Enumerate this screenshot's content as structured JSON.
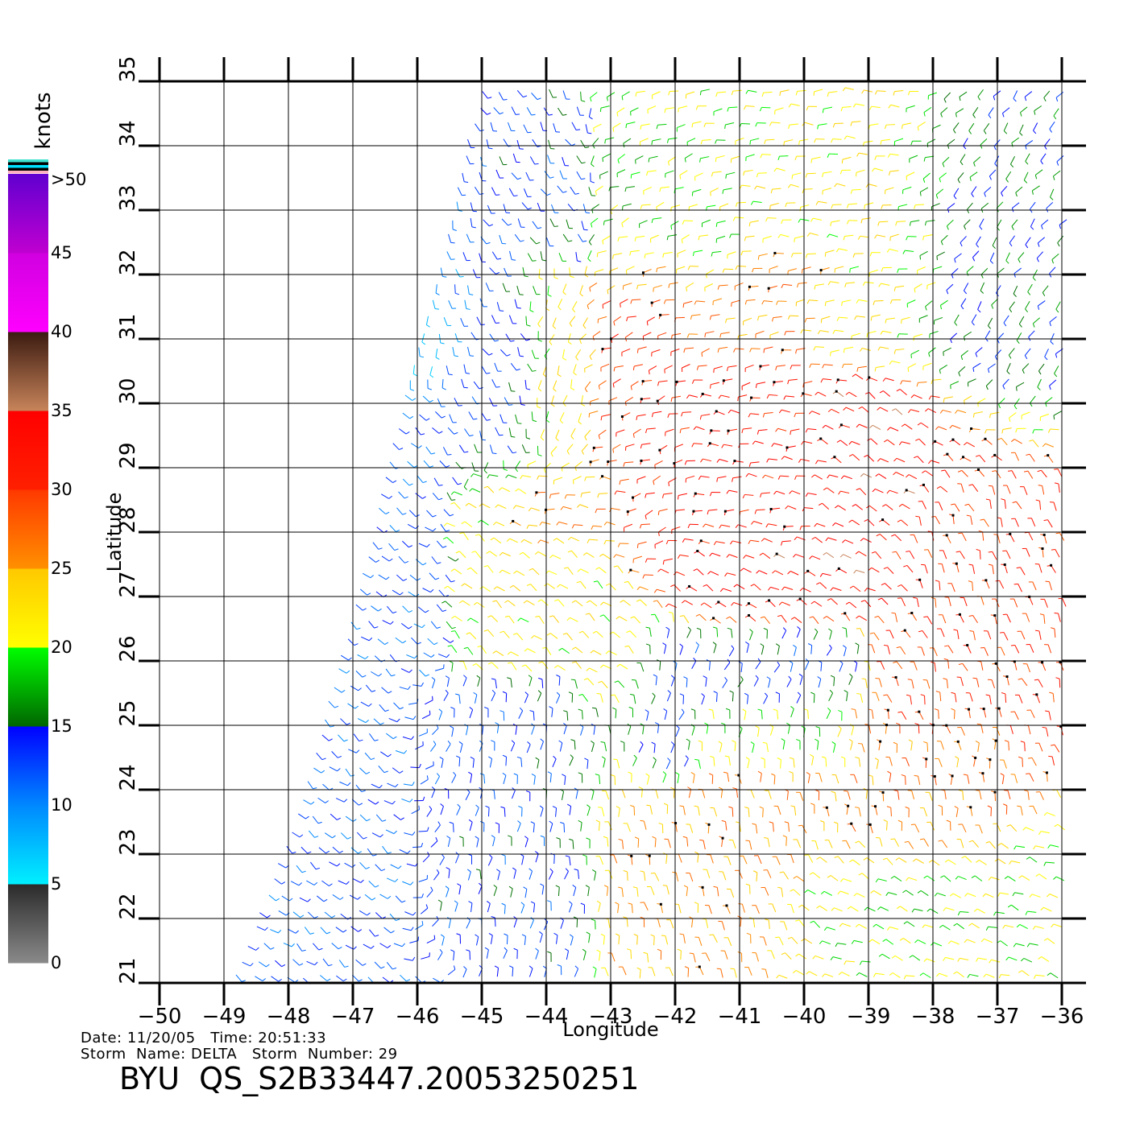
{
  "chart_data": {
    "type": "wind_barb_map",
    "xlabel": "Longitude",
    "ylabel": "Latitude",
    "xlim": [
      -50,
      -36
    ],
    "ylim": [
      21,
      35
    ],
    "x_ticks": [
      -50,
      -49,
      -48,
      -47,
      -46,
      -45,
      -44,
      -43,
      -42,
      -41,
      -40,
      -39,
      -38,
      -37,
      -36
    ],
    "y_ticks": [
      21,
      22,
      23,
      24,
      25,
      26,
      27,
      28,
      29,
      30,
      31,
      32,
      33,
      34,
      35
    ],
    "x_tick_labels": [
      "−50",
      "−49",
      "−48",
      "−47",
      "−46",
      "−45",
      "−44",
      "−43",
      "−42",
      "−41",
      "−40",
      "−39",
      "−38",
      "−37",
      "−36"
    ],
    "y_tick_labels": [
      "21",
      "22",
      "23",
      "24",
      "25",
      "26",
      "27",
      "28",
      "29",
      "30",
      "31",
      "32",
      "33",
      "34",
      "35"
    ],
    "grid": true,
    "swath_edge": [
      [
        -48.9,
        21.0
      ],
      [
        -47.8,
        24.0
      ],
      [
        -47.0,
        27.0
      ],
      [
        -46.4,
        29.5
      ],
      [
        -45.6,
        32.5
      ],
      [
        -45.3,
        34.0
      ],
      [
        -45.0,
        35.0
      ]
    ],
    "colorbar": {
      "title": "knots",
      "position": "left",
      "tick_labels": [
        "0",
        "5",
        "10",
        "15",
        "20",
        "25",
        "30",
        "35",
        "40",
        "45",
        ">50"
      ],
      "bands": [
        {
          "from": 0,
          "to": 5,
          "colors": [
            "#8a8a8a",
            "#2a2a2a"
          ]
        },
        {
          "from": 5,
          "to": 10,
          "colors": [
            "#00f0ff",
            "#0088ff"
          ]
        },
        {
          "from": 10,
          "to": 15,
          "colors": [
            "#0088ff",
            "#0000ff"
          ]
        },
        {
          "from": 15,
          "to": 20,
          "colors": [
            "#006600",
            "#00ff00"
          ]
        },
        {
          "from": 20,
          "to": 25,
          "colors": [
            "#ffff00",
            "#ffc800"
          ]
        },
        {
          "from": 25,
          "to": 30,
          "colors": [
            "#ff9000",
            "#ff3800"
          ]
        },
        {
          "from": 30,
          "to": 35,
          "colors": [
            "#ff2000",
            "#ff0000"
          ]
        },
        {
          "from": 35,
          "to": 40,
          "colors": [
            "#c8845a",
            "#3a1a10"
          ]
        },
        {
          "from": 40,
          "to": 45,
          "colors": [
            "#ff00ff",
            "#d000e0"
          ]
        },
        {
          "from": 45,
          "to": 50,
          "colors": [
            "#c000d0",
            "#6000d0"
          ]
        }
      ],
      "top_stripes": [
        "#40e0d0",
        "#000000",
        "#00e0ff",
        "#000000",
        "#ffb0c0"
      ]
    },
    "wind_regions": [
      {
        "lon": [
          -47.5,
          -45.5
        ],
        "lat": [
          30.5,
          34.0
        ],
        "speed_kt": 7,
        "dir_deg": 260
      },
      {
        "lon": [
          -49.0,
          -46.0
        ],
        "lat": [
          21.0,
          30.0
        ],
        "speed_kt": 12,
        "dir_deg": 320
      },
      {
        "lon": [
          -46.0,
          -44.0
        ],
        "lat": [
          21.5,
          25.5
        ],
        "speed_kt": 13,
        "dir_deg": 80
      },
      {
        "lon": [
          -45.5,
          -43.5
        ],
        "lat": [
          29.0,
          34.5
        ],
        "speed_kt": 13,
        "dir_deg": 300
      },
      {
        "lon": [
          -45.0,
          -43.0
        ],
        "lat": [
          26.0,
          29.0
        ],
        "speed_kt": 22,
        "dir_deg": 140
      },
      {
        "lon": [
          -43.0,
          -41.0
        ],
        "lat": [
          32.0,
          35.0
        ],
        "speed_kt": 19,
        "dir_deg": 200
      },
      {
        "lon": [
          -41.5,
          -38.0
        ],
        "lat": [
          31.0,
          35.0
        ],
        "speed_kt": 22,
        "dir_deg": 180
      },
      {
        "lon": [
          -38.0,
          -36.0
        ],
        "lat": [
          31.0,
          35.0
        ],
        "speed_kt": 15,
        "dir_deg": 230
      },
      {
        "lon": [
          -44.0,
          -40.0
        ],
        "lat": [
          28.0,
          32.0
        ],
        "speed_kt": 31,
        "dir_deg": 200
      },
      {
        "lon": [
          -41.5,
          -38.5
        ],
        "lat": [
          27.0,
          30.0
        ],
        "speed_kt": 33,
        "dir_deg": 150
      },
      {
        "lon": [
          -38.5,
          -36.5
        ],
        "lat": [
          25.0,
          28.0
        ],
        "speed_kt": 30,
        "dir_deg": 110
      },
      {
        "lon": [
          -42.0,
          -39.5
        ],
        "lat": [
          24.5,
          26.0
        ],
        "speed_kt": 13,
        "dir_deg": 70
      },
      {
        "lon": [
          -41.5,
          -37.0
        ],
        "lat": [
          23.0,
          25.0
        ],
        "speed_kt": 27,
        "dir_deg": 95
      },
      {
        "lon": [
          -42.5,
          -40.0
        ],
        "lat": [
          21.5,
          23.5
        ],
        "speed_kt": 25,
        "dir_deg": 100
      },
      {
        "lon": [
          -40.0,
          -36.0
        ],
        "lat": [
          21.0,
          23.0
        ],
        "speed_kt": 20,
        "dir_deg": 160
      }
    ]
  },
  "footer": {
    "date_label": "Date:",
    "date": "11/20/05",
    "time_label": "Time:",
    "time": "20:51:33",
    "storm_name_label": "Storm  Name:",
    "storm_name": "DELTA",
    "storm_number_label": "Storm  Number:",
    "storm_number": "29",
    "product_id": "BYU  QS_S2B33447.20053250251"
  }
}
